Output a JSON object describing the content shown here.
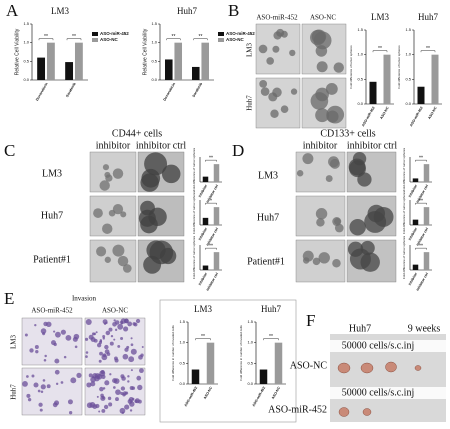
{
  "panel_letters": [
    "A",
    "B",
    "C",
    "D",
    "E",
    "F"
  ],
  "panel_B": {
    "columns": [
      "ASO-miR-452",
      "ASO-NC"
    ],
    "rows": [
      "LM3",
      "Huh7"
    ]
  },
  "panel_C": {
    "title": "CD44+ cells",
    "columns": [
      "inhibitor",
      "inhibitor ctrl"
    ],
    "rows": [
      "LM3",
      "Huh7",
      "Patient#1"
    ]
  },
  "panel_D": {
    "title": "CD133+ cells",
    "columns": [
      "inhibitor",
      "inhibitor ctrl"
    ],
    "rows": [
      "LM3",
      "Huh7",
      "Patient#1"
    ]
  },
  "panel_E": {
    "title": "Invasion",
    "columns": [
      "ASO-miR-452",
      "ASO-NC"
    ],
    "rows": [
      "LM3",
      "Huh7"
    ]
  },
  "panel_F": {
    "cell_line": "Huh7",
    "time": "9 weeks",
    "injection": [
      "50000 cells/s.c.inj",
      "50000 cells/s.c.inj"
    ],
    "rows": [
      "ASO-NC",
      "ASO-miR-452"
    ]
  },
  "chart_data": [
    {
      "type": "bar",
      "title": "LM3",
      "ylabel": "Relative Cell Viability",
      "categories": [
        "Doxorubicin",
        "Sorafenib"
      ],
      "series": [
        {
          "name": "ASO-miR-452",
          "color": "#111111",
          "values": [
            0.6,
            0.48
          ]
        },
        {
          "name": "ASO-NC",
          "color": "#9a9a9a",
          "values": [
            1.0,
            1.0
          ]
        }
      ],
      "ylim": [
        0,
        1.5
      ],
      "yticks": [
        {
          "value": 0,
          "label": "0.0"
        },
        {
          "value": 0.5,
          "label": "0.5"
        },
        {
          "value": 1,
          "label": "1.0"
        },
        {
          "value": 1.5,
          "label": "1.5"
        }
      ],
      "annotations": [
        "**",
        "**"
      ]
    },
    {
      "type": "bar",
      "title": "Huh7",
      "ylabel": "Relative Cell Viability",
      "categories": [
        "Doxorubicin",
        "Sorafenib"
      ],
      "series": [
        {
          "name": "ASO-miR-452",
          "color": "#111111",
          "values": [
            0.55,
            0.35
          ]
        },
        {
          "name": "ASO-NC",
          "color": "#9a9a9a",
          "values": [
            1.0,
            1.0
          ]
        }
      ],
      "ylim": [
        0,
        1.5
      ],
      "yticks": [
        {
          "value": 0,
          "label": "0.0"
        },
        {
          "value": 0.5,
          "label": "0.5"
        },
        {
          "value": 1,
          "label": "1.0"
        },
        {
          "value": 1.5,
          "label": "1.5"
        }
      ],
      "annotations": [
        "**",
        "**"
      ]
    },
    {
      "type": "bar",
      "title": "LM3",
      "ylabel": "Fold difference of tumor spheres",
      "categories": [
        "ASO-miR-452",
        "ASO-NC"
      ],
      "values": [
        0.45,
        1.0
      ],
      "colors": [
        "#111111",
        "#9a9a9a"
      ],
      "ylim": [
        0,
        1.5
      ],
      "yticks": [
        {
          "value": 0,
          "label": "0.0"
        },
        {
          "value": 0.5,
          "label": "0.5"
        },
        {
          "value": 1,
          "label": "1.0"
        },
        {
          "value": 1.5,
          "label": "1.5"
        }
      ],
      "annotations": [
        "**"
      ]
    },
    {
      "type": "bar",
      "title": "Huh7",
      "ylabel": "Fold difference of tumor spheres",
      "categories": [
        "ASO-miR-452",
        "ASO-NC"
      ],
      "values": [
        0.35,
        1.0
      ],
      "colors": [
        "#111111",
        "#9a9a9a"
      ],
      "ylim": [
        0,
        1.5
      ],
      "yticks": [
        {
          "value": 0,
          "label": "0.0"
        },
        {
          "value": 0.5,
          "label": "0.5"
        },
        {
          "value": 1,
          "label": "1.0"
        },
        {
          "value": 1.5,
          "label": "1.5"
        }
      ],
      "annotations": [
        "**"
      ]
    },
    {
      "type": "bar",
      "ylabel": "Fold difference of tumor spheres",
      "categories": [
        "inhibitor",
        "inhibitor ctrl"
      ],
      "values": [
        0.3,
        1.0
      ],
      "colors": [
        "#111111",
        "#9a9a9a"
      ],
      "ylim": [
        0,
        1.4
      ],
      "annotations": [
        "**"
      ]
    },
    {
      "type": "bar",
      "ylabel": "Fold difference of tumor spheres",
      "categories": [
        "inhibitor",
        "inhibitor ctrl"
      ],
      "values": [
        0.4,
        1.0
      ],
      "colors": [
        "#111111",
        "#9a9a9a"
      ],
      "ylim": [
        0,
        1.4
      ],
      "annotations": [
        "*"
      ]
    },
    {
      "type": "bar",
      "ylabel": "Fold difference of tumor spheres",
      "categories": [
        "inhibitor",
        "inhibitor ctrl"
      ],
      "values": [
        0.25,
        1.0
      ],
      "colors": [
        "#111111",
        "#9a9a9a"
      ],
      "ylim": [
        0,
        1.4
      ],
      "annotations": [
        "**"
      ]
    },
    {
      "type": "bar",
      "ylabel": "Fold difference of tumor spheres",
      "categories": [
        "inhibitor",
        "inhibitor ctrl"
      ],
      "values": [
        0.2,
        1.0
      ],
      "colors": [
        "#111111",
        "#9a9a9a"
      ],
      "ylim": [
        0,
        1.4
      ],
      "annotations": [
        "**"
      ]
    },
    {
      "type": "bar",
      "ylabel": "Fold difference of tumor spheres",
      "categories": [
        "inhibitor",
        "inhibitor ctrl"
      ],
      "values": [
        0.3,
        1.0
      ],
      "colors": [
        "#111111",
        "#9a9a9a"
      ],
      "ylim": [
        0,
        1.4
      ],
      "annotations": [
        "**"
      ]
    },
    {
      "type": "bar",
      "ylabel": "Fold difference of tumor spheres",
      "categories": [
        "inhibitor",
        "inhibitor ctrl"
      ],
      "values": [
        0.3,
        1.0
      ],
      "colors": [
        "#111111",
        "#9a9a9a"
      ],
      "ylim": [
        0,
        1.4
      ],
      "annotations": [
        "**"
      ]
    },
    {
      "type": "bar",
      "title": "LM3",
      "ylabel": "Fold difference in number of invaded cells",
      "categories": [
        "ASO-miR-452",
        "ASO-NC"
      ],
      "values": [
        0.35,
        1.0
      ],
      "colors": [
        "#111111",
        "#9a9a9a"
      ],
      "ylim": [
        0,
        1.5
      ],
      "yticks": [
        {
          "value": 0,
          "label": "0.0"
        },
        {
          "value": 0.5,
          "label": "0.5"
        },
        {
          "value": 1,
          "label": "1.0"
        },
        {
          "value": 1.5,
          "label": "1.5"
        }
      ],
      "annotations": [
        "**"
      ]
    },
    {
      "type": "bar",
      "title": "Huh7",
      "ylabel": "Fold difference in number of invaded cells",
      "categories": [
        "ASO-miR-452",
        "ASO-NC"
      ],
      "values": [
        0.35,
        1.0
      ],
      "colors": [
        "#111111",
        "#9a9a9a"
      ],
      "ylim": [
        0,
        1.5
      ],
      "yticks": [
        {
          "value": 0,
          "label": "0.0"
        },
        {
          "value": 0.5,
          "label": "0.5"
        },
        {
          "value": 1,
          "label": "1.0"
        },
        {
          "value": 1.5,
          "label": "1.5"
        }
      ],
      "annotations": [
        "**"
      ]
    }
  ]
}
